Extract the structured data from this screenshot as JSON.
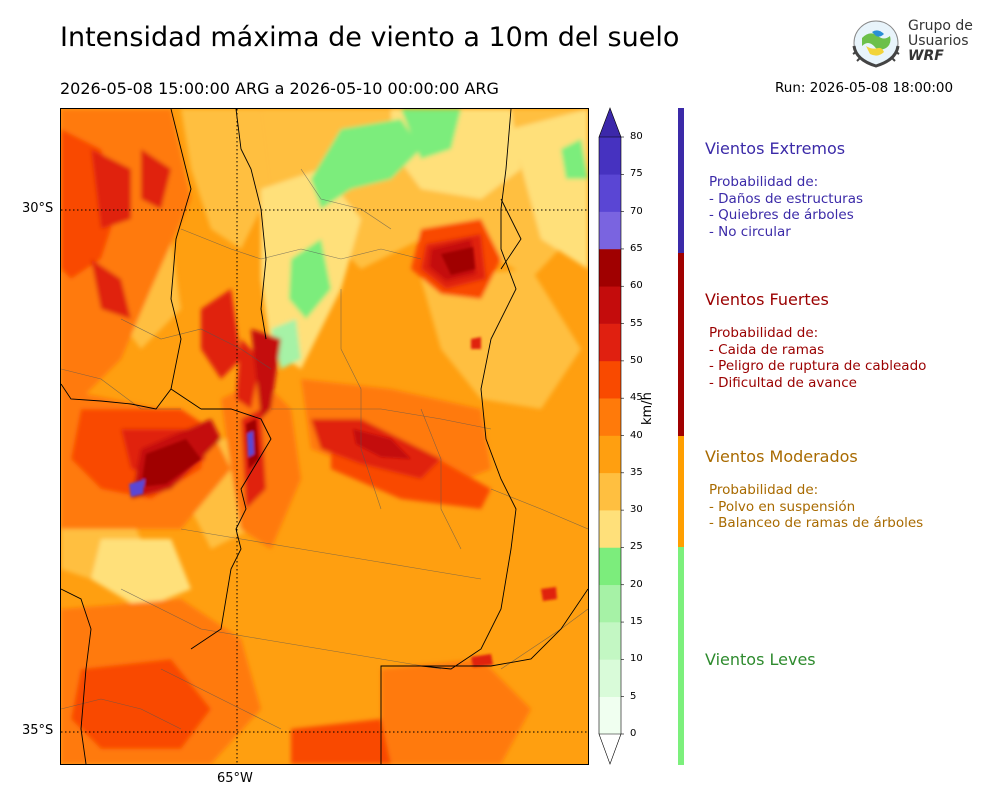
{
  "header": {
    "title": "Intensidad máxima de viento a 10m del suelo",
    "date_range": "2026-05-08 15:00:00 ARG  a  2026-05-10 00:00:00 ARG",
    "run": "Run: 2026-05-08 18:00:00"
  },
  "logo": {
    "line1": "Grupo de",
    "line2": "Usuarios",
    "line3": "WRF"
  },
  "map": {
    "lat_labels": [
      "30°S",
      "35°S"
    ],
    "lon_labels": [
      "65°W"
    ],
    "grid_lats": [
      -30,
      -35
    ],
    "grid_lons": [
      -65
    ]
  },
  "colorbar": {
    "unit": "km/h",
    "ticks": [
      "80",
      "75",
      "70",
      "65",
      "60",
      "55",
      "50",
      "45",
      "40",
      "35",
      "30",
      "25",
      "20",
      "15",
      "10",
      "5",
      "0"
    ],
    "levels": [
      {
        "min": 0,
        "max": 5,
        "color": "#f0fff0"
      },
      {
        "min": 5,
        "max": 10,
        "color": "#d9fbd9"
      },
      {
        "min": 10,
        "max": 15,
        "color": "#c3f7c3"
      },
      {
        "min": 15,
        "max": 20,
        "color": "#a6f2a6"
      },
      {
        "min": 20,
        "max": 25,
        "color": "#7ced7c"
      },
      {
        "min": 25,
        "max": 30,
        "color": "#ffe07a"
      },
      {
        "min": 30,
        "max": 35,
        "color": "#ffbf40"
      },
      {
        "min": 35,
        "max": 40,
        "color": "#ff9f10"
      },
      {
        "min": 40,
        "max": 45,
        "color": "#ff7a0a"
      },
      {
        "min": 45,
        "max": 50,
        "color": "#f94a00"
      },
      {
        "min": 50,
        "max": 55,
        "color": "#e02010"
      },
      {
        "min": 55,
        "max": 60,
        "color": "#c40c0c"
      },
      {
        "min": 60,
        "max": 65,
        "color": "#a00000"
      },
      {
        "min": 65,
        "max": 70,
        "color": "#7a64e0"
      },
      {
        "min": 70,
        "max": 75,
        "color": "#5a46d4"
      },
      {
        "min": 75,
        "max": 80,
        "color": "#4632c0"
      }
    ],
    "extend_max_color": "#3c28aa",
    "extend_min_color": "#ffffff"
  },
  "categories": [
    {
      "title": "Vientos Extremos",
      "color": "#3b2aa8",
      "bar_color": "#3b2aa8",
      "lines": [
        "Probabilidad de:",
        "- Daños de estructuras",
        "- Quiebres de árboles",
        "- No circular"
      ]
    },
    {
      "title": "Vientos Fuertes",
      "color": "#9a0000",
      "bar_color": "#a00000",
      "lines": [
        "Probabilidad de:",
        "- Caida de ramas",
        "- Peligro de ruptura de cableado",
        "- Dificultad de avance"
      ]
    },
    {
      "title": "Vientos Moderados",
      "color": "#a86a00",
      "bar_color": "#ff9f00",
      "lines": [
        "Probabilidad de:",
        "- Polvo en suspensión",
        "- Balanceo de ramas de árboles"
      ]
    },
    {
      "title": "Vientos Leves",
      "color": "#2e8b2e",
      "bar_color": "#7cf07c",
      "lines": []
    }
  ]
}
